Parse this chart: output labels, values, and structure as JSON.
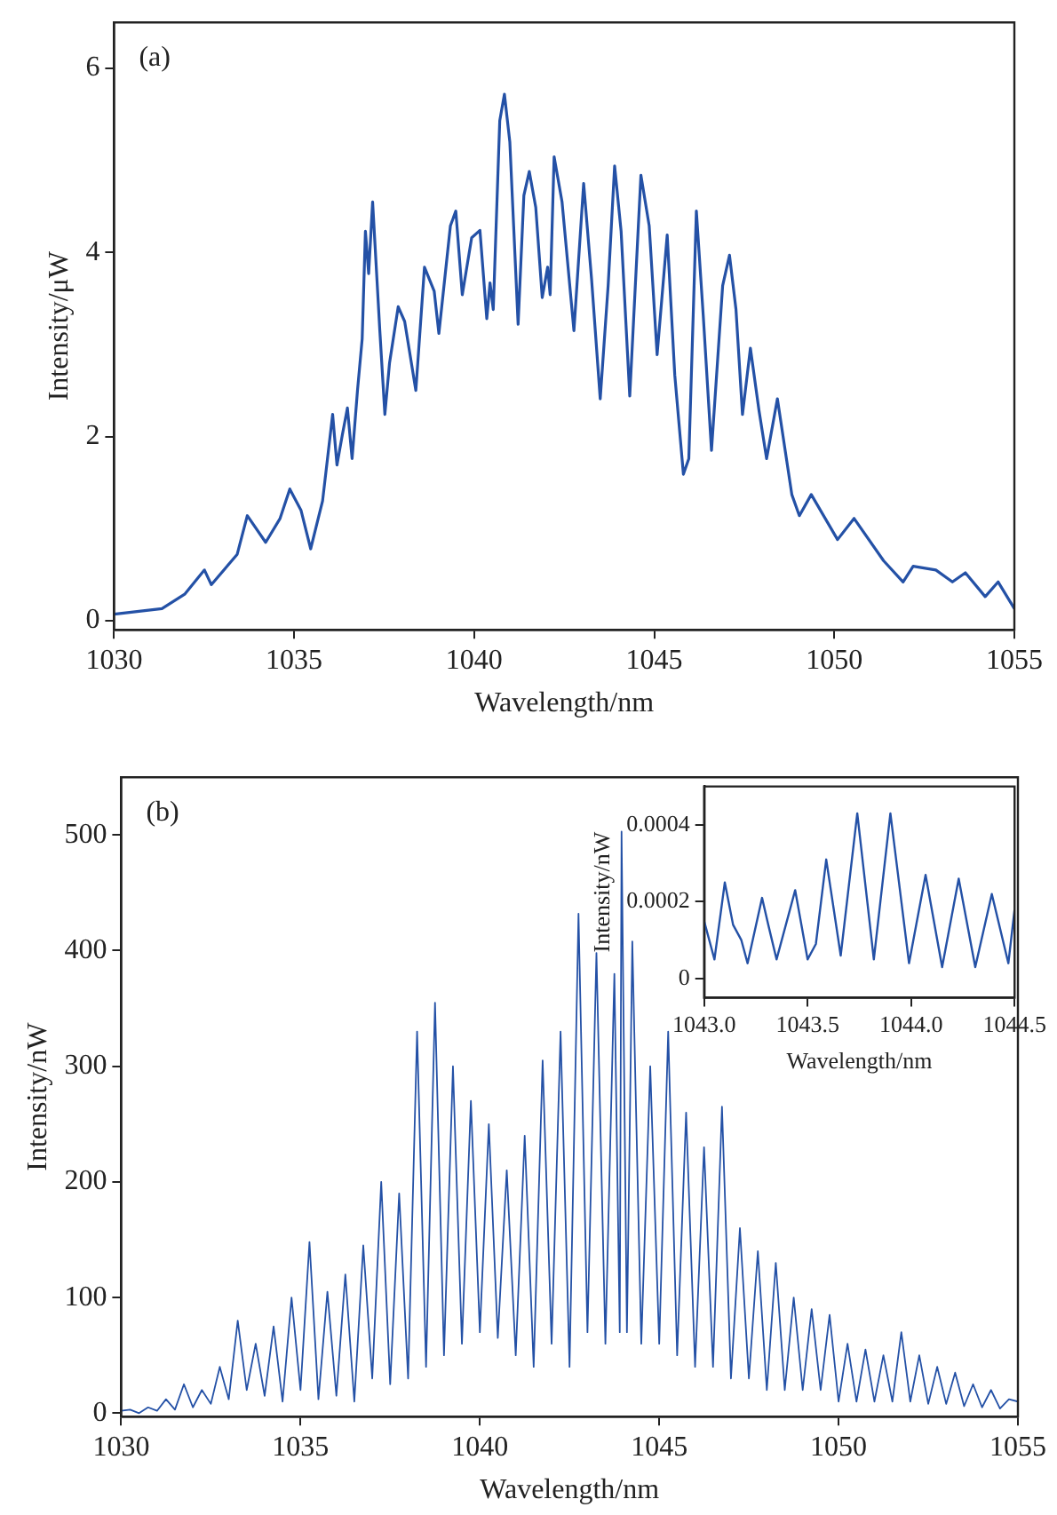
{
  "chart_data": [
    {
      "type": "line",
      "xlabel": "Wavelength/nm",
      "ylabel": "Intensity/μW",
      "annotations": [
        "(a)"
      ],
      "marker": "none",
      "grid": false,
      "legend": false,
      "xlim": [
        1030,
        1055
      ],
      "xticks": [
        1030,
        1035,
        1040,
        1045,
        1050,
        1055
      ],
      "ylim": [
        -0.1,
        6.5
      ],
      "yticks": [
        0,
        2,
        4,
        6
      ],
      "series": [
        {
          "color": "#2451a6",
          "x": [
            1030.0,
            1031.33,
            1031.97,
            1032.51,
            1032.7,
            1033.42,
            1033.7,
            1034.21,
            1034.61,
            1034.88,
            1035.19,
            1035.46,
            1035.79,
            1036.07,
            1036.19,
            1036.34,
            1036.48,
            1036.61,
            1036.76,
            1036.89,
            1036.98,
            1037.07,
            1037.18,
            1037.38,
            1037.52,
            1037.65,
            1037.89,
            1038.07,
            1038.38,
            1038.62,
            1038.89,
            1039.02,
            1039.34,
            1039.49,
            1039.67,
            1039.93,
            1040.16,
            1040.35,
            1040.44,
            1040.53,
            1040.71,
            1040.84,
            1040.99,
            1041.22,
            1041.38,
            1041.53,
            1041.71,
            1041.89,
            1042.04,
            1042.11,
            1042.22,
            1042.44,
            1042.77,
            1043.04,
            1043.26,
            1043.5,
            1043.72,
            1043.9,
            1044.08,
            1044.32,
            1044.63,
            1044.86,
            1045.08,
            1045.36,
            1045.57,
            1045.81,
            1045.96,
            1046.17,
            1046.36,
            1046.59,
            1046.9,
            1047.09,
            1047.27,
            1047.45,
            1047.67,
            1047.91,
            1048.12,
            1048.42,
            1048.82,
            1049.03,
            1049.36,
            1050.09,
            1050.55,
            1051.37,
            1051.91,
            1052.19,
            1052.82,
            1053.28,
            1053.64,
            1054.19,
            1054.55,
            1055.0
          ],
          "values": [
            0.07,
            0.13,
            0.29,
            0.55,
            0.39,
            0.72,
            1.14,
            0.85,
            1.11,
            1.43,
            1.2,
            0.78,
            1.3,
            2.24,
            1.69,
            2.02,
            2.31,
            1.76,
            2.5,
            3.06,
            4.23,
            3.77,
            4.55,
            3.15,
            2.24,
            2.8,
            3.41,
            3.25,
            2.5,
            3.84,
            3.58,
            3.12,
            4.29,
            4.45,
            3.54,
            4.16,
            4.24,
            3.28,
            3.67,
            3.38,
            5.43,
            5.72,
            5.2,
            3.22,
            4.62,
            4.88,
            4.49,
            3.51,
            3.84,
            3.54,
            5.04,
            4.55,
            3.15,
            4.75,
            3.71,
            2.41,
            3.64,
            4.94,
            4.23,
            2.44,
            4.84,
            4.29,
            2.89,
            4.19,
            2.67,
            1.59,
            1.76,
            4.45,
            3.32,
            1.85,
            3.64,
            3.97,
            3.38,
            2.24,
            2.96,
            2.28,
            1.76,
            2.41,
            1.37,
            1.14,
            1.37,
            0.88,
            1.11,
            0.65,
            0.42,
            0.59,
            0.55,
            0.42,
            0.52,
            0.26,
            0.42,
            0.13
          ]
        }
      ]
    },
    {
      "type": "line",
      "xlabel": "Wavelength/nm",
      "ylabel": "Intensity/nW",
      "annotations": [
        "(b)"
      ],
      "marker": "none",
      "grid": false,
      "legend": false,
      "xlim": [
        1030,
        1055
      ],
      "xticks": [
        1030,
        1035,
        1040,
        1045,
        1050,
        1055
      ],
      "ylim": [
        -3,
        550
      ],
      "yticks": [
        0,
        100,
        200,
        300,
        400,
        500
      ],
      "series": [
        {
          "color": "#2451a6",
          "x": [
            1030,
            1030.25,
            1030.5,
            1030.75,
            1031,
            1031.25,
            1031.5,
            1031.75,
            1032,
            1032.25,
            1032.5,
            1032.75,
            1033,
            1033.25,
            1033.5,
            1033.75,
            1034,
            1034.25,
            1034.5,
            1034.75,
            1035,
            1035.25,
            1035.5,
            1035.75,
            1036,
            1036.25,
            1036.5,
            1036.75,
            1037,
            1037.25,
            1037.5,
            1037.75,
            1038,
            1038.25,
            1038.5,
            1038.75,
            1039,
            1039.25,
            1039.5,
            1039.75,
            1040,
            1040.25,
            1040.5,
            1040.75,
            1041,
            1041.25,
            1041.5,
            1041.75,
            1042,
            1042.25,
            1042.5,
            1042.75,
            1043,
            1043.25,
            1043.5,
            1043.75,
            1043.9,
            1043.95,
            1044.1,
            1044.25,
            1044.5,
            1044.75,
            1045,
            1045.25,
            1045.5,
            1045.75,
            1046,
            1046.25,
            1046.5,
            1046.75,
            1047,
            1047.25,
            1047.5,
            1047.75,
            1048,
            1048.25,
            1048.5,
            1048.75,
            1049,
            1049.25,
            1049.5,
            1049.75,
            1050,
            1050.25,
            1050.5,
            1050.75,
            1051,
            1051.25,
            1051.5,
            1051.75,
            1052,
            1052.25,
            1052.5,
            1052.75,
            1053,
            1053.25,
            1053.5,
            1053.75,
            1054,
            1054.25,
            1054.5,
            1054.75,
            1055
          ],
          "values": [
            2,
            3,
            0,
            5,
            2,
            12,
            3,
            25,
            5,
            20,
            8,
            40,
            12,
            80,
            20,
            60,
            15,
            75,
            10,
            100,
            20,
            148,
            12,
            105,
            15,
            120,
            10,
            145,
            30,
            200,
            25,
            190,
            30,
            330,
            40,
            355,
            50,
            300,
            60,
            270,
            70,
            250,
            65,
            210,
            50,
            240,
            40,
            305,
            60,
            330,
            40,
            432,
            70,
            398,
            60,
            380,
            70,
            503,
            70,
            408,
            60,
            300,
            60,
            330,
            50,
            260,
            40,
            230,
            40,
            265,
            30,
            160,
            30,
            140,
            20,
            130,
            20,
            100,
            20,
            90,
            20,
            85,
            10,
            60,
            10,
            55,
            10,
            50,
            10,
            70,
            10,
            50,
            8,
            40,
            8,
            35,
            6,
            25,
            5,
            20,
            4,
            12,
            10
          ]
        }
      ]
    },
    {
      "type": "line",
      "xlabel": "Wavelength/nm",
      "ylabel": "Intensity/nW",
      "marker": "none",
      "grid": false,
      "legend": false,
      "xlim": [
        1043,
        1044.5
      ],
      "xticks": [
        {
          "value": 1043,
          "label": "1043.0"
        },
        1043.5,
        {
          "value": 1044,
          "label": "1044.0"
        },
        1044.5
      ],
      "ylim": [
        -5e-05,
        0.0005
      ],
      "yticks": [
        0,
        0.0002,
        0.0004
      ],
      "series": [
        {
          "color": "#2451a6",
          "x": [
            1043.0,
            1043.05,
            1043.1,
            1043.14,
            1043.18,
            1043.21,
            1043.28,
            1043.31,
            1043.35,
            1043.44,
            1043.5,
            1043.54,
            1043.59,
            1043.66,
            1043.74,
            1043.82,
            1043.9,
            1043.99,
            1044.07,
            1044.15,
            1044.23,
            1044.31,
            1044.39,
            1044.47,
            1044.5
          ],
          "values": [
            0.00015,
            5e-05,
            0.00025,
            0.00014,
            0.0001,
            4e-05,
            0.00021,
            0.00014,
            5e-05,
            0.00023,
            5e-05,
            9e-05,
            0.00031,
            6e-05,
            0.00043,
            5e-05,
            0.00043,
            4e-05,
            0.00027,
            3e-05,
            0.00026,
            3e-05,
            0.00022,
            4e-05,
            0.00018
          ]
        }
      ]
    }
  ]
}
